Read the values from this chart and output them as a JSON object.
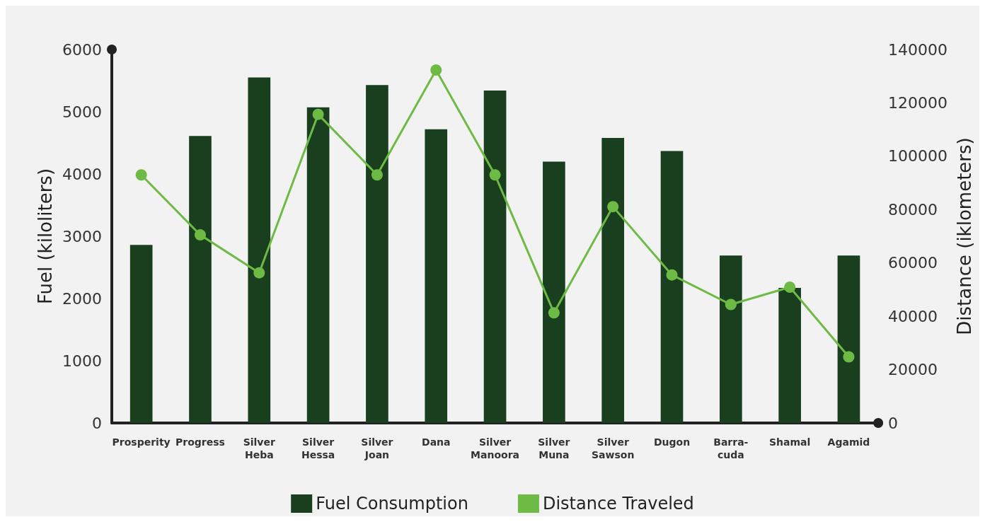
{
  "chart_data": {
    "type": "bar",
    "ylabel": "Fuel (kiloliters)",
    "y2label": "Distance (iklometers)",
    "categories": [
      "Prosperity",
      "Progress",
      "Silver Heba",
      "Silver Hessa",
      "Silver Joan",
      "Dana",
      "Silver Manoora",
      "Silver Muna",
      "Silver Sawson",
      "Dugon",
      "Barra-cuda",
      "Shamal",
      "Agamid"
    ],
    "series": [
      {
        "name": "Fuel Consumption",
        "color": "#1a3f1f",
        "values": [
          2860,
          4610,
          5550,
          5070,
          5430,
          4720,
          5340,
          4200,
          4580,
          4370,
          2690,
          2170,
          2690
        ]
      },
      {
        "name": "Distance Traveled",
        "type": "line",
        "axis": "y2",
        "color": "#6dbb45",
        "values": [
          93000,
          70500,
          56300,
          115700,
          93000,
          132300,
          93000,
          41300,
          81100,
          55500,
          44400,
          50900,
          24800
        ]
      }
    ],
    "ylim": [
      0,
      6000
    ],
    "yticks": [
      0,
      1000,
      2000,
      3000,
      4000,
      5000,
      6000
    ],
    "y2lim": [
      0,
      140000
    ],
    "y2ticks": [
      0,
      20000,
      40000,
      60000,
      80000,
      100000,
      120000,
      140000
    ],
    "grid": false,
    "legend": "bottom",
    "marker": "circle",
    "line_style": "solid"
  }
}
